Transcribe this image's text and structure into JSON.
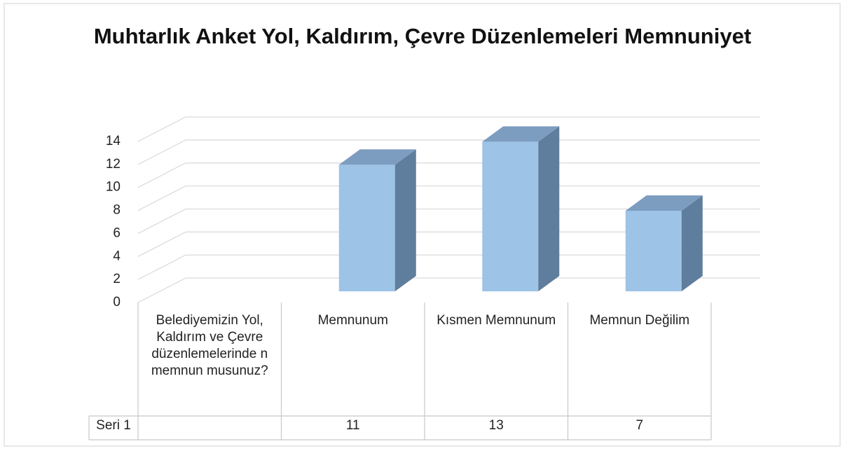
{
  "chart_data": {
    "type": "bar3d",
    "title": "Muhtarlık Anket Yol, Kaldırım, Çevre Düzenlemeleri Memnuniyet",
    "categories": [
      "Belediyemizin Yol, Kaldırım ve Çevre düzenlemelerinde n memnun musunuz?",
      "Memnunum",
      "Kısmen Memnunum",
      "Memnun Değilim"
    ],
    "series": [
      {
        "name": "Seri 1",
        "color": "#9dc3e6",
        "values": [
          null,
          11,
          13,
          7
        ]
      }
    ],
    "ylim": [
      0,
      14
    ],
    "yticks": [
      0,
      2,
      4,
      6,
      8,
      10,
      12,
      14
    ],
    "grid": true,
    "data_table": true
  }
}
